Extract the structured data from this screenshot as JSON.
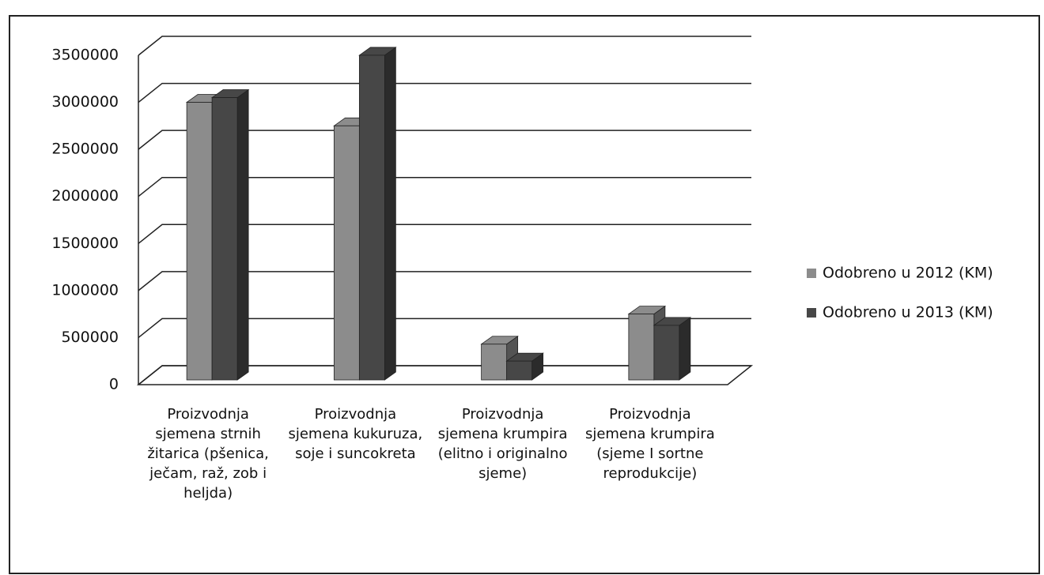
{
  "chart_data": {
    "type": "bar3d",
    "categories": [
      "Proizvodnja sjemena strnih žitarica (pšenica, ječam, raž, zob i heljda)",
      "Proizvodnja sjemena kukuruza, soje i suncokreta",
      "Proizvodnja sjemena krumpira (elitno i originalno sjeme)",
      "Proizvodnja sjemena krumpira (sjeme I sortne reprodukcije)"
    ],
    "series": [
      {
        "name": "Odobreno u 2012 (KM)",
        "color": "#8c8c8c",
        "values": [
          2950000,
          2700000,
          380000,
          700000
        ]
      },
      {
        "name": "Odobreno u 2013 (KM)",
        "color": "#474747",
        "values": [
          3000000,
          3450000,
          200000,
          580000
        ]
      }
    ],
    "ylim": [
      0,
      3500000
    ],
    "yticks": [
      0,
      500000,
      1000000,
      1500000,
      2000000,
      2500000,
      3000000,
      3500000
    ],
    "grid": true,
    "legend": "right"
  }
}
